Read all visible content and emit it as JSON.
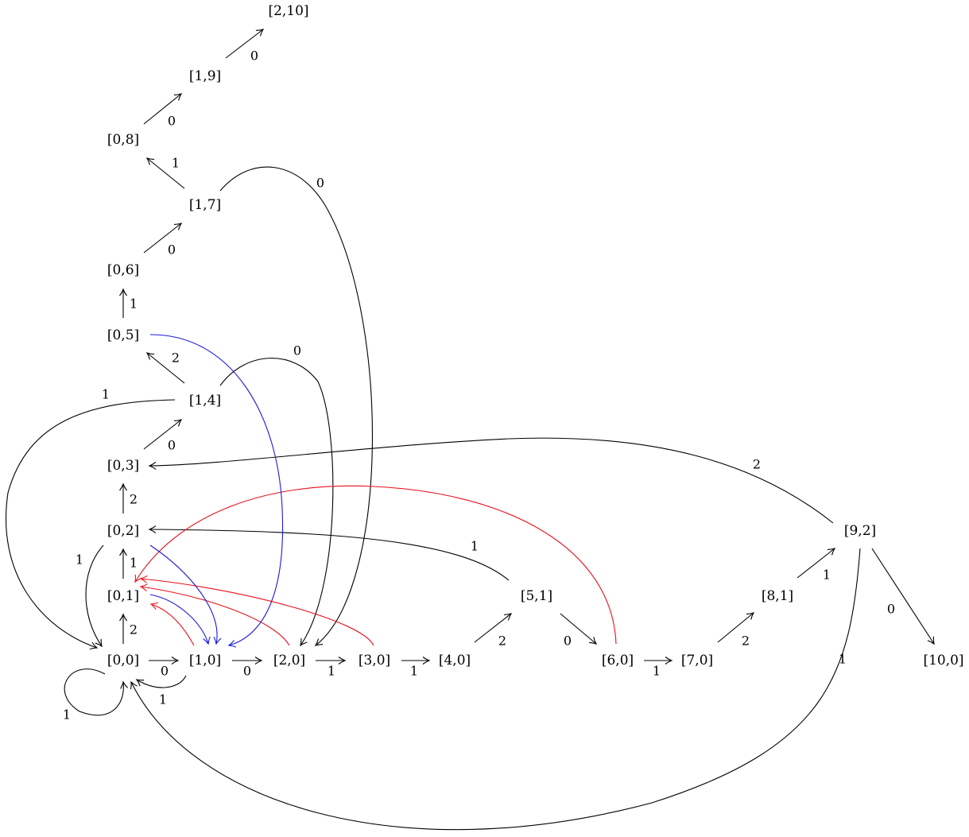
{
  "colors": {
    "black": "#000000",
    "red": "#e8121e",
    "blue": "#1a1adb"
  },
  "nodes": {
    "n00": "[0,0]",
    "n10": "[1,0]",
    "n20": "[2,0]",
    "n30": "[3,0]",
    "n40": "[4,0]",
    "n51": "[5,1]",
    "n60": "[6,0]",
    "n70": "[7,0]",
    "n81": "[8,1]",
    "n92": "[9,2]",
    "n100": "[10,0]",
    "n01": "[0,1]",
    "n02": "[0,2]",
    "n03": "[0,3]",
    "n14": "[1,4]",
    "n05": "[0,5]",
    "n06": "[0,6]",
    "n17": "[1,7]",
    "n08": "[0,8]",
    "n19": "[1,9]",
    "n210": "[2,10]"
  },
  "edges": [
    {
      "id": "e00-10",
      "from": "[0,0]",
      "to": "[1,0]",
      "label": "0",
      "color": "black"
    },
    {
      "id": "e10-20",
      "from": "[1,0]",
      "to": "[2,0]",
      "label": "0",
      "color": "black"
    },
    {
      "id": "e20-30",
      "from": "[2,0]",
      "to": "[3,0]",
      "label": "1",
      "color": "black"
    },
    {
      "id": "e30-40",
      "from": "[3,0]",
      "to": "[4,0]",
      "label": "1",
      "color": "black"
    },
    {
      "id": "e40-51",
      "from": "[4,0]",
      "to": "[5,1]",
      "label": "2",
      "color": "black"
    },
    {
      "id": "e51-60",
      "from": "[5,1]",
      "to": "[6,0]",
      "label": "0",
      "color": "black"
    },
    {
      "id": "e60-70",
      "from": "[6,0]",
      "to": "[7,0]",
      "label": "1",
      "color": "black"
    },
    {
      "id": "e70-81",
      "from": "[7,0]",
      "to": "[8,1]",
      "label": "2",
      "color": "black"
    },
    {
      "id": "e81-92",
      "from": "[8,1]",
      "to": "[9,2]",
      "label": "1",
      "color": "black"
    },
    {
      "id": "e92-100",
      "from": "[9,2]",
      "to": "[10,0]",
      "label": "0",
      "color": "black"
    },
    {
      "id": "e92-03",
      "from": "[9,2]",
      "to": "[0,3]",
      "label": "2",
      "color": "black"
    },
    {
      "id": "e92-00",
      "from": "[9,2]",
      "to": "[0,0]",
      "label": "1",
      "color": "black"
    },
    {
      "id": "e51-02",
      "from": "[5,1]",
      "to": "[0,2]",
      "label": "1",
      "color": "black"
    },
    {
      "id": "e00-00",
      "from": "[0,0]",
      "to": "[0,0]",
      "label": "1",
      "color": "black"
    },
    {
      "id": "e10-00",
      "from": "[1,0]",
      "to": "[0,0]",
      "label": "1",
      "color": "black"
    },
    {
      "id": "e00-01",
      "from": "[0,0]",
      "to": "[0,1]",
      "label": "2",
      "color": "black"
    },
    {
      "id": "e01-02",
      "from": "[0,1]",
      "to": "[0,2]",
      "label": "1",
      "color": "black"
    },
    {
      "id": "e02-03",
      "from": "[0,2]",
      "to": "[0,3]",
      "label": "2",
      "color": "black"
    },
    {
      "id": "e02-00",
      "from": "[0,2]",
      "to": "[0,0]",
      "label": "1",
      "color": "black"
    },
    {
      "id": "e03-14",
      "from": "[0,3]",
      "to": "[1,4]",
      "label": "0",
      "color": "black"
    },
    {
      "id": "e14-05",
      "from": "[1,4]",
      "to": "[0,5]",
      "label": "2",
      "color": "black"
    },
    {
      "id": "e14-00",
      "from": "[1,4]",
      "to": "[0,0]",
      "label": "1",
      "color": "black"
    },
    {
      "id": "e14-20",
      "from": "[1,4]",
      "to": "[2,0]",
      "label": "0",
      "color": "black"
    },
    {
      "id": "e05-06",
      "from": "[0,5]",
      "to": "[0,6]",
      "label": "1",
      "color": "black"
    },
    {
      "id": "e06-17",
      "from": "[0,6]",
      "to": "[1,7]",
      "label": "0",
      "color": "black"
    },
    {
      "id": "e17-08",
      "from": "[1,7]",
      "to": "[0,8]",
      "label": "1",
      "color": "black"
    },
    {
      "id": "e17-20",
      "from": "[1,7]",
      "to": "[2,0]",
      "label": "0",
      "color": "black"
    },
    {
      "id": "e08-19",
      "from": "[0,8]",
      "to": "[1,9]",
      "label": "0",
      "color": "black"
    },
    {
      "id": "e19-210",
      "from": "[1,9]",
      "to": "[2,10]",
      "label": "0",
      "color": "black"
    },
    {
      "id": "r60-01",
      "from": "[6,0]",
      "to": "[0,1]",
      "label": "",
      "color": "red"
    },
    {
      "id": "r30-01",
      "from": "[3,0]",
      "to": "[0,1]",
      "label": "",
      "color": "red"
    },
    {
      "id": "r20-01",
      "from": "[2,0]",
      "to": "[0,1]",
      "label": "",
      "color": "red"
    },
    {
      "id": "r10-01",
      "from": "[1,0]",
      "to": "[0,1]",
      "label": "",
      "color": "red"
    },
    {
      "id": "b02-10",
      "from": "[0,2]",
      "to": "[1,0]",
      "label": "",
      "color": "blue"
    },
    {
      "id": "b01-10",
      "from": "[0,1]",
      "to": "[1,0]",
      "label": "",
      "color": "blue"
    },
    {
      "id": "b05-10",
      "from": "[0,5]",
      "to": "[1,0]",
      "label": "",
      "color": "blue"
    }
  ]
}
